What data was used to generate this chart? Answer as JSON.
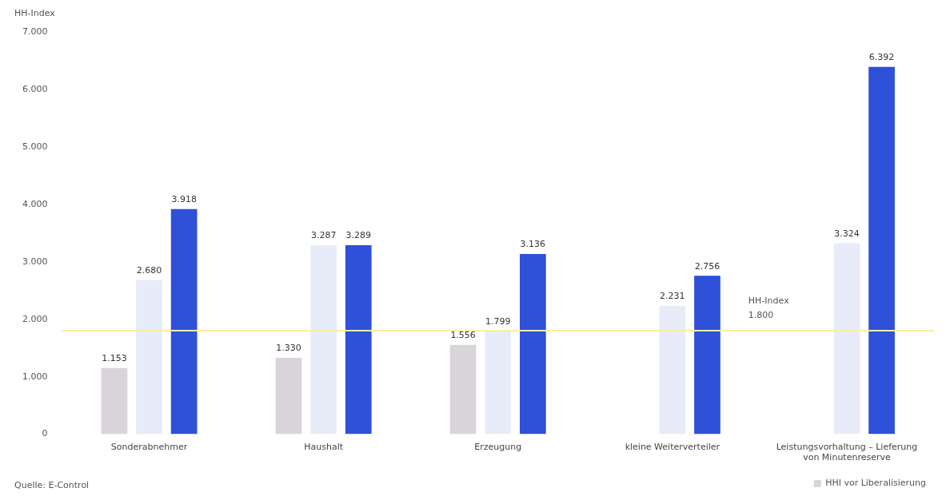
{
  "chart_data": {
    "type": "bar",
    "ylabel": "HH-Index",
    "categories": [
      "Sonderabnehmer",
      "Haushalt",
      "Erzeugung",
      "kleine Weiterverteiler",
      "Leistungsvorhaltung – Lieferung von Minutenreserve"
    ],
    "series": [
      {
        "name": "HHI vor Liberalisierung",
        "color": "#d8d4da",
        "values": [
          1153,
          1330,
          1556,
          null,
          null
        ],
        "value_labels": [
          "1.153",
          "1.330",
          "1.556",
          null,
          null
        ]
      },
      {
        "color": "#e8ecf8",
        "values": [
          2680,
          3287,
          1799,
          2231,
          3324
        ],
        "value_labels": [
          "2.680",
          "3.287",
          "1.799",
          "2.231",
          "3.324"
        ]
      },
      {
        "color": "#2f50d9",
        "values": [
          3918,
          3289,
          3136,
          2756,
          6392
        ],
        "value_labels": [
          "3.918",
          "3.289",
          "3.136",
          "2.756",
          "6.392"
        ]
      }
    ],
    "ylim": [
      0,
      7000
    ],
    "yticks": [
      {
        "value": 0,
        "label": "0"
      },
      {
        "value": 1000,
        "label": "1.000"
      },
      {
        "value": 2000,
        "label": "2.000"
      },
      {
        "value": 3000,
        "label": "3.000"
      },
      {
        "value": 4000,
        "label": "4.000"
      },
      {
        "value": 5000,
        "label": "5.000"
      },
      {
        "value": 6000,
        "label": "6.000"
      },
      {
        "value": 7000,
        "label": "7.000"
      }
    ],
    "ref_lines": [
      {
        "axis": "y",
        "value": 1800,
        "label": "HH-Index 1.800",
        "color": "#f6efa6"
      }
    ],
    "annotations": [
      "Quelle: E-Control"
    ],
    "legend": "bottom right",
    "grid": false
  }
}
